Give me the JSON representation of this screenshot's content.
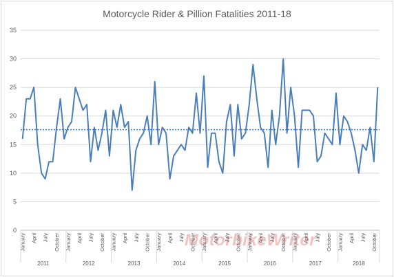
{
  "chart_data": {
    "type": "line",
    "title": "Motorcycle Rider & Pillion Fatalities 2011-18",
    "xlabel": "",
    "ylabel": "",
    "ylim": [
      0,
      35
    ],
    "yticks": [
      0,
      5,
      10,
      15,
      20,
      25,
      30,
      35
    ],
    "grid": true,
    "legend": "none",
    "colors": {
      "series": "#4a7ebb",
      "average": "#4a7ebb",
      "grid": "#d9d9d9"
    },
    "month_labels": [
      "January",
      "April",
      "July",
      "October"
    ],
    "years": [
      "2011",
      "2012",
      "2013",
      "2014",
      "2015",
      "2016",
      "2017",
      "2018"
    ],
    "series": [
      {
        "values": [
          16,
          23,
          23,
          25,
          15,
          10,
          9,
          12,
          12,
          18,
          23,
          16,
          18,
          19,
          25,
          23,
          21,
          22,
          12,
          18,
          14,
          17,
          21,
          13,
          21,
          18,
          22,
          18,
          19,
          7,
          14,
          16,
          17,
          20,
          15,
          26,
          15,
          18,
          17,
          9,
          13,
          14,
          15,
          14,
          18,
          17,
          24,
          17,
          27,
          11,
          17,
          17,
          12,
          10,
          19,
          22,
          13,
          22,
          16,
          17,
          22,
          29,
          23,
          18,
          17,
          11,
          21,
          15,
          20,
          30,
          17,
          25,
          20,
          11,
          21,
          21,
          21,
          20,
          12,
          13,
          17,
          16,
          15,
          24,
          15,
          20,
          19,
          17,
          14,
          10,
          15,
          14,
          18,
          12,
          25
        ]
      }
    ],
    "average_line": 17.6
  },
  "watermark": "MotorbikeWriter"
}
